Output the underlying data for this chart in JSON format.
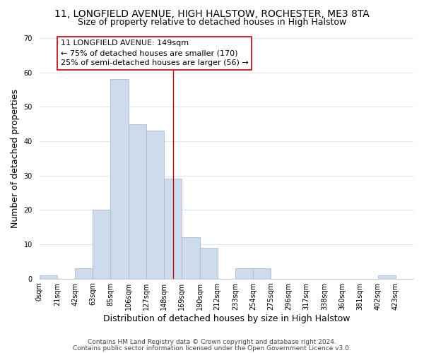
{
  "title_line1": "11, LONGFIELD AVENUE, HIGH HALSTOW, ROCHESTER, ME3 8TA",
  "title_line2": "Size of property relative to detached houses in High Halstow",
  "xlabel": "Distribution of detached houses by size in High Halstow",
  "ylabel": "Number of detached properties",
  "bar_color": "#ccdcec",
  "bar_edge_color": "#aabccc",
  "bin_labels": [
    "0sqm",
    "21sqm",
    "42sqm",
    "63sqm",
    "85sqm",
    "106sqm",
    "127sqm",
    "148sqm",
    "169sqm",
    "190sqm",
    "212sqm",
    "233sqm",
    "254sqm",
    "275sqm",
    "296sqm",
    "317sqm",
    "338sqm",
    "360sqm",
    "381sqm",
    "402sqm",
    "423sqm"
  ],
  "bar_heights": [
    1,
    0,
    3,
    20,
    58,
    45,
    43,
    29,
    12,
    9,
    0,
    3,
    3,
    0,
    0,
    0,
    0,
    0,
    0,
    1,
    0
  ],
  "ylim": [
    0,
    70
  ],
  "yticks": [
    0,
    10,
    20,
    30,
    40,
    50,
    60,
    70
  ],
  "annotation_title": "11 LONGFIELD AVENUE: 149sqm",
  "annotation_line1": "← 75% of detached houses are smaller (170)",
  "annotation_line2": "25% of semi-detached houses are larger (56) →",
  "vline_x": 7.5,
  "footer_line1": "Contains HM Land Registry data © Crown copyright and database right 2024.",
  "footer_line2": "Contains public sector information licensed under the Open Government Licence v3.0.",
  "background_color": "#ffffff",
  "grid_color": "#dce8f0",
  "vline_color": "#cc0000",
  "annotation_border_color": "#cc0000",
  "title_fontsize": 10,
  "subtitle_fontsize": 9,
  "axis_label_fontsize": 9,
  "tick_fontsize": 7,
  "annotation_fontsize": 8,
  "footer_fontsize": 6.5
}
